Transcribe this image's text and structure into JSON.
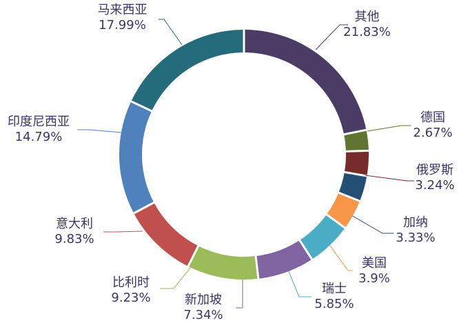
{
  "chart_data": {
    "type": "pie",
    "variant": "donut",
    "start": "top, clockwise",
    "slices": [
      {
        "name": "其他",
        "label": "21.83%",
        "value": 21.83,
        "color": "#4b3c66"
      },
      {
        "name": "德国",
        "label": "2.67%",
        "value": 2.67,
        "color": "#5f7530"
      },
      {
        "name": "俄罗斯",
        "label": "3.24%",
        "value": 3.24,
        "color": "#772b2b"
      },
      {
        "name": "加纳",
        "label": "3.33%",
        "value": 3.33,
        "color": "#254e74"
      },
      {
        "name": "美国",
        "label": "3.9%",
        "value": 3.9,
        "color": "#f79646"
      },
      {
        "name": "瑞士",
        "label": "5.85%",
        "value": 5.85,
        "color": "#4bacc6"
      },
      {
        "name": "新加坡",
        "label": "7.34%",
        "value": 7.34,
        "color": "#8064a2"
      },
      {
        "name": "比利时",
        "label": "9.23%",
        "value": 9.23,
        "color": "#9bbb59"
      },
      {
        "name": "意大利",
        "label": "9.83%",
        "value": 9.83,
        "color": "#c0504d"
      },
      {
        "name": "印度尼西亚",
        "label": "14.79%",
        "value": 14.79,
        "color": "#4f81bd"
      },
      {
        "name": "马来西亚",
        "label": "17.99%",
        "value": 17.99,
        "color": "#246c7b"
      }
    ]
  }
}
